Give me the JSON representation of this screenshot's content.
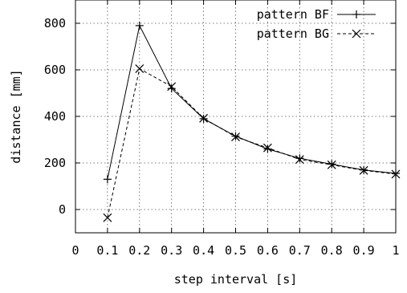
{
  "chart_data": {
    "type": "line",
    "xlabel": "step interval [s]",
    "ylabel": "distance [mm]",
    "xlim": [
      0,
      1
    ],
    "ylim": [
      -100,
      900
    ],
    "x_ticks": [
      0,
      0.1,
      0.2,
      0.3,
      0.4,
      0.5,
      0.6,
      0.7,
      0.8,
      0.9,
      1
    ],
    "x_tick_labels": [
      "0",
      "0.1",
      "0.2",
      "0.3",
      "0.4",
      "0.5",
      "0.6",
      "0.7",
      "0.8",
      "0.9",
      "1"
    ],
    "y_ticks": [
      0,
      200,
      400,
      600,
      800
    ],
    "y_tick_labels": [
      "0",
      "200",
      "400",
      "600",
      "800"
    ],
    "grid": true,
    "legend_position": "top-right",
    "series": [
      {
        "name": "pattern BF",
        "line_style": "solid",
        "marker": "plus",
        "color": "#000000",
        "x": [
          0.1,
          0.2,
          0.3,
          0.4,
          0.5,
          0.6,
          0.7,
          0.8,
          0.9,
          1.0
        ],
        "y": [
          130,
          790,
          520,
          390,
          315,
          260,
          220,
          195,
          170,
          155
        ]
      },
      {
        "name": "pattern BG",
        "line_style": "dashed",
        "marker": "cross",
        "color": "#000000",
        "x": [
          0.1,
          0.2,
          0.3,
          0.4,
          0.5,
          0.6,
          0.7,
          0.8,
          0.9,
          1.0
        ],
        "y": [
          -35,
          605,
          528,
          392,
          312,
          265,
          215,
          192,
          168,
          152
        ]
      }
    ]
  }
}
